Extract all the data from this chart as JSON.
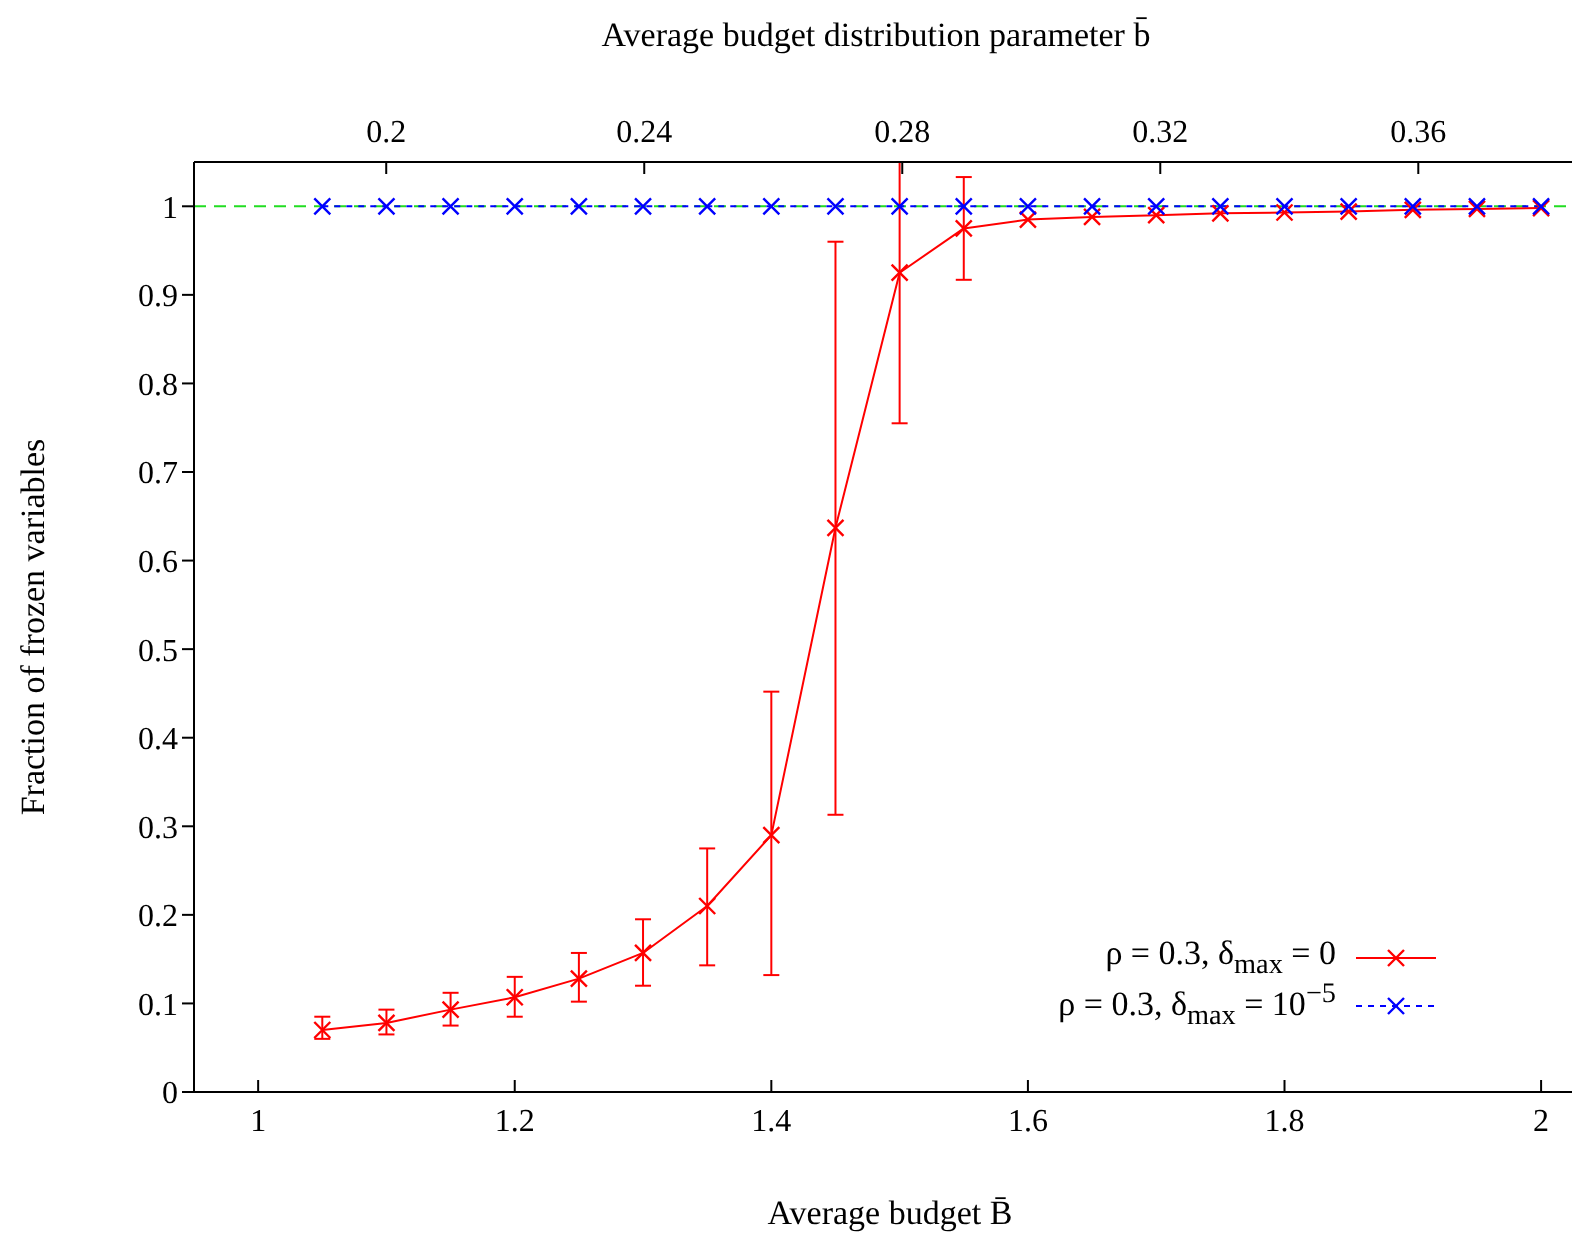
{
  "chart_data": {
    "type": "line",
    "xlabel": "Average budget B̄",
    "x2label": "Average budget distribution parameter b̄",
    "ylabel": "Fraction of frozen variables",
    "x": [
      1.05,
      1.1,
      1.15,
      1.2,
      1.25,
      1.3,
      1.35,
      1.4,
      1.45,
      1.5,
      1.55,
      1.6,
      1.65,
      1.7,
      1.75,
      1.8,
      1.85,
      1.9,
      1.95,
      2.0
    ],
    "xlim": [
      0.95,
      2.035
    ],
    "xticks": [
      1,
      1.2,
      1.4,
      1.6,
      1.8,
      2
    ],
    "x2lim": [
      0.1702,
      0.386
    ],
    "x2ticks": [
      0.2,
      0.24,
      0.28,
      0.32,
      0.36
    ],
    "ylim": [
      0,
      1.05
    ],
    "yticks": [
      0,
      0.1,
      0.2,
      0.3,
      0.4,
      0.5,
      0.6,
      0.7,
      0.8,
      0.9,
      1
    ],
    "grid": false,
    "legend": "bottom right",
    "ref_lines": [
      {
        "axis": "y",
        "value": 1,
        "color": "#22dd22",
        "line_style": "dashed"
      }
    ],
    "series": [
      {
        "name": "ρ = 0.3, δ$_{max}$ = 0",
        "color": "#ff0000",
        "line_style": "solid",
        "marker": "cross",
        "values": [
          0.07,
          0.078,
          0.093,
          0.107,
          0.128,
          0.157,
          0.21,
          0.29,
          0.637,
          0.925,
          0.975,
          0.985,
          0.988,
          0.99,
          0.992,
          0.993,
          0.994,
          0.996,
          0.997,
          0.998
        ],
        "errors": [
          [
            0.06,
            0.085
          ],
          [
            0.065,
            0.093
          ],
          [
            0.075,
            0.112
          ],
          [
            0.085,
            0.13
          ],
          [
            0.102,
            0.157
          ],
          [
            0.12,
            0.195
          ],
          [
            0.143,
            0.275
          ],
          [
            0.132,
            0.452
          ],
          [
            0.313,
            0.96
          ],
          [
            0.755,
            1.05
          ],
          [
            0.917,
            1.033
          ],
          null,
          null,
          null,
          null,
          null,
          null,
          null,
          null,
          null
        ]
      },
      {
        "name": "ρ = 0.3, δ$_{max}$ = 10$^{−5}$",
        "color": "#0000ff",
        "line_style": "dotted",
        "marker": "cross",
        "values": [
          1,
          1,
          1,
          1,
          1,
          1,
          1,
          1,
          1,
          1,
          1,
          1,
          1,
          1,
          1,
          1,
          1,
          1,
          1,
          1
        ]
      }
    ]
  }
}
